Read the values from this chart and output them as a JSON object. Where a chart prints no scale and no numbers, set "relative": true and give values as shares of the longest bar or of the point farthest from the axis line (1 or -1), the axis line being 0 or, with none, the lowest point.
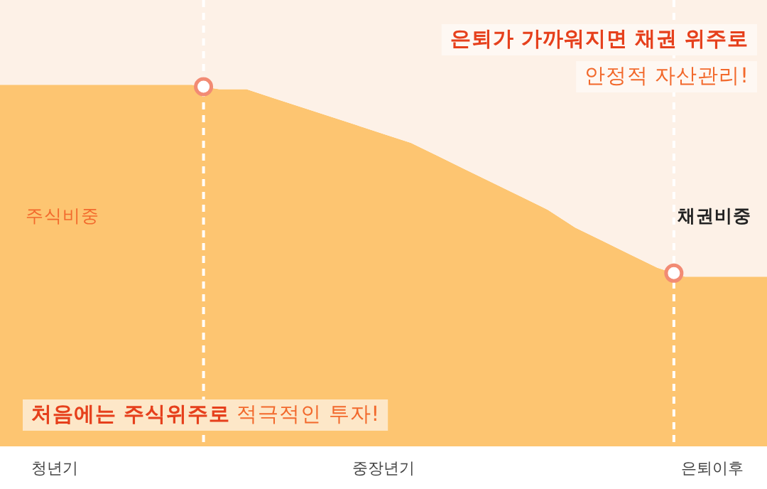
{
  "chart_data": {
    "type": "area",
    "relative": true,
    "stacked": true,
    "categories": [
      null,
      null,
      "청년기",
      null,
      null,
      null,
      null,
      null,
      null,
      null,
      null,
      null,
      null,
      null,
      "중장년기",
      null,
      null,
      null,
      null,
      null,
      null,
      null,
      null,
      null,
      null,
      null,
      "은퇴이후",
      null,
      null
    ],
    "series": [
      {
        "name": "주식비중",
        "color": "#fdc571",
        "values": [
          0.81,
          0.81,
          0.81,
          0.81,
          0.81,
          0.81,
          0.81,
          0.81,
          0.8,
          0.8,
          0.78,
          0.76,
          0.74,
          0.72,
          0.7,
          0.68,
          0.65,
          0.62,
          0.59,
          0.56,
          0.53,
          0.49,
          0.46,
          0.43,
          0.4,
          0.38,
          0.38,
          0.38,
          0.38
        ]
      },
      {
        "name": "채권비중",
        "color": "#fdf1e7",
        "values": [
          0.19,
          0.19,
          0.19,
          0.19,
          0.19,
          0.19,
          0.19,
          0.19,
          0.2,
          0.2,
          0.22,
          0.24,
          0.26,
          0.28,
          0.3,
          0.32,
          0.35,
          0.38,
          0.41,
          0.44,
          0.47,
          0.51,
          0.54,
          0.57,
          0.6,
          0.62,
          0.62,
          0.62,
          0.62
        ]
      }
    ],
    "annotations": [
      "은퇴가 가까워지면 채권 위주로",
      "안정적 자산관리!",
      "**처음에는 주식위주로** 적극적인 투자!"
    ]
  }
}
